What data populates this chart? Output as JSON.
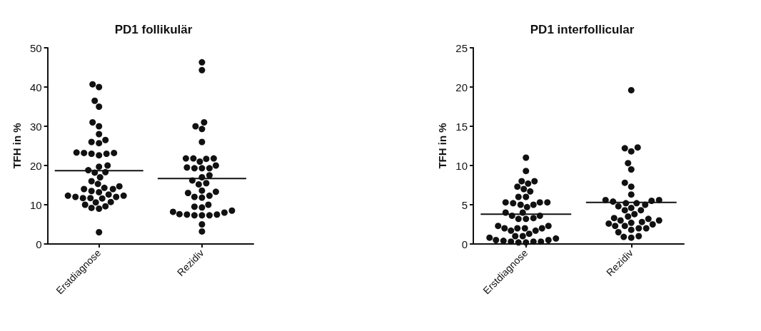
{
  "chart_data": [
    {
      "type": "scatter",
      "title": "PD1 follikulär",
      "ylabel": "TFH in %",
      "categories": [
        "Erstdiagnose",
        "Rezidiv"
      ],
      "ylim": [
        0,
        50
      ],
      "yticks": [
        0,
        10,
        20,
        30,
        40,
        50
      ],
      "grid": false,
      "marker": "circle",
      "series": [
        {
          "color": "#111111",
          "x": [
            "Erstdiagnose",
            "Erstdiagnose",
            "Erstdiagnose",
            "Erstdiagnose",
            "Erstdiagnose",
            "Erstdiagnose",
            "Erstdiagnose",
            "Erstdiagnose",
            "Erstdiagnose",
            "Erstdiagnose",
            "Erstdiagnose",
            "Erstdiagnose",
            "Erstdiagnose",
            "Erstdiagnose",
            "Erstdiagnose",
            "Erstdiagnose",
            "Erstdiagnose",
            "Erstdiagnose",
            "Erstdiagnose",
            "Erstdiagnose",
            "Erstdiagnose",
            "Erstdiagnose",
            "Erstdiagnose",
            "Erstdiagnose",
            "Erstdiagnose",
            "Erstdiagnose",
            "Erstdiagnose",
            "Erstdiagnose",
            "Erstdiagnose",
            "Erstdiagnose",
            "Erstdiagnose",
            "Erstdiagnose",
            "Erstdiagnose",
            "Erstdiagnose",
            "Erstdiagnose",
            "Erstdiagnose",
            "Erstdiagnose",
            "Erstdiagnose",
            "Erstdiagnose",
            "Erstdiagnose",
            "Erstdiagnose",
            "Erstdiagnose",
            "Erstdiagnose",
            "Erstdiagnose",
            "Erstdiagnose"
          ],
          "values": [
            40.7,
            40,
            36.5,
            35,
            31,
            30,
            28,
            26.5,
            26,
            25.7,
            23.3,
            23.2,
            23.2,
            23,
            23,
            22.6,
            20,
            19.7,
            18.8,
            18.3,
            18.2,
            17,
            16,
            15.3,
            14.7,
            14.3,
            14,
            14,
            13.5,
            13.2,
            12.6,
            12.3,
            12.3,
            12,
            12,
            11.7,
            11.7,
            11.6,
            10.7,
            10.6,
            10,
            9.6,
            9.2,
            9,
            3
          ]
        },
        {
          "color": "#111111",
          "x": [
            "Rezidiv",
            "Rezidiv",
            "Rezidiv",
            "Rezidiv",
            "Rezidiv",
            "Rezidiv",
            "Rezidiv",
            "Rezidiv",
            "Rezidiv",
            "Rezidiv",
            "Rezidiv",
            "Rezidiv",
            "Rezidiv",
            "Rezidiv",
            "Rezidiv",
            "Rezidiv",
            "Rezidiv",
            "Rezidiv",
            "Rezidiv",
            "Rezidiv",
            "Rezidiv",
            "Rezidiv",
            "Rezidiv",
            "Rezidiv",
            "Rezidiv",
            "Rezidiv",
            "Rezidiv",
            "Rezidiv",
            "Rezidiv",
            "Rezidiv",
            "Rezidiv",
            "Rezidiv",
            "Rezidiv",
            "Rezidiv",
            "Rezidiv",
            "Rezidiv",
            "Rezidiv",
            "Rezidiv",
            "Rezidiv",
            "Rezidiv",
            "Rezidiv"
          ],
          "values": [
            46.3,
            44.3,
            31,
            30,
            29.3,
            26,
            21.8,
            21.8,
            21.8,
            21.7,
            21,
            20,
            19.3,
            19.3,
            19.3,
            19.5,
            17,
            17.5,
            16.2,
            15.5,
            15.2,
            13.6,
            13.3,
            13,
            12.3,
            12,
            11.8,
            10,
            9.5,
            9.3,
            8.5,
            8.2,
            8,
            7.6,
            7.5,
            7.3,
            7.3,
            7.3,
            7.5,
            5,
            3.2
          ]
        },
        {
          "type": "bar",
          "color": "#111111",
          "base": [
            18.7,
            16.7
          ],
          "values": [
            0,
            0
          ]
        }
      ]
    },
    {
      "type": "scatter",
      "title": "PD1 interfollicular",
      "ylabel": "TFH in %",
      "categories": [
        "Erstdiagnose",
        "Rezidiv"
      ],
      "ylim": [
        0,
        25
      ],
      "yticks": [
        0,
        5,
        10,
        15,
        20,
        25
      ],
      "grid": false,
      "marker": "circle",
      "series": [
        {
          "color": "#111111",
          "x": [
            "Erstdiagnose",
            "Erstdiagnose",
            "Erstdiagnose",
            "Erstdiagnose",
            "Erstdiagnose",
            "Erstdiagnose",
            "Erstdiagnose",
            "Erstdiagnose",
            "Erstdiagnose",
            "Erstdiagnose",
            "Erstdiagnose",
            "Erstdiagnose",
            "Erstdiagnose",
            "Erstdiagnose",
            "Erstdiagnose",
            "Erstdiagnose",
            "Erstdiagnose",
            "Erstdiagnose",
            "Erstdiagnose",
            "Erstdiagnose",
            "Erstdiagnose",
            "Erstdiagnose",
            "Erstdiagnose",
            "Erstdiagnose",
            "Erstdiagnose",
            "Erstdiagnose",
            "Erstdiagnose",
            "Erstdiagnose",
            "Erstdiagnose",
            "Erstdiagnose",
            "Erstdiagnose",
            "Erstdiagnose",
            "Erstdiagnose",
            "Erstdiagnose",
            "Erstdiagnose",
            "Erstdiagnose",
            "Erstdiagnose",
            "Erstdiagnose",
            "Erstdiagnose",
            "Erstdiagnose",
            "Erstdiagnose",
            "Erstdiagnose",
            "Erstdiagnose",
            "Erstdiagnose",
            "Erstdiagnose"
          ],
          "values": [
            11,
            9.3,
            8,
            8,
            7.7,
            7.3,
            7,
            6.7,
            6,
            6,
            5.3,
            5.3,
            5.3,
            5.2,
            5,
            5,
            4.7,
            4,
            4,
            3.6,
            3.6,
            3.3,
            3.2,
            3.2,
            2.3,
            2.3,
            2,
            2,
            2,
            2,
            1.7,
            1.7,
            1.3,
            1,
            1,
            0.8,
            0.7,
            0.5,
            0.5,
            0.4,
            0.3,
            0.3,
            0.2,
            0.2,
            0.3
          ]
        },
        {
          "color": "#111111",
          "x": [
            "Rezidiv",
            "Rezidiv",
            "Rezidiv",
            "Rezidiv",
            "Rezidiv",
            "Rezidiv",
            "Rezidiv",
            "Rezidiv",
            "Rezidiv",
            "Rezidiv",
            "Rezidiv",
            "Rezidiv",
            "Rezidiv",
            "Rezidiv",
            "Rezidiv",
            "Rezidiv",
            "Rezidiv",
            "Rezidiv",
            "Rezidiv",
            "Rezidiv",
            "Rezidiv",
            "Rezidiv",
            "Rezidiv",
            "Rezidiv",
            "Rezidiv",
            "Rezidiv",
            "Rezidiv",
            "Rezidiv",
            "Rezidiv",
            "Rezidiv",
            "Rezidiv",
            "Rezidiv",
            "Rezidiv",
            "Rezidiv",
            "Rezidiv",
            "Rezidiv",
            "Rezidiv",
            "Rezidiv",
            "Rezidiv"
          ],
          "values": [
            19.6,
            12.2,
            11.8,
            12.3,
            10.3,
            9.5,
            7.8,
            7.3,
            6.3,
            5.6,
            5.6,
            5.5,
            5.4,
            5.2,
            5.2,
            5,
            4.8,
            4.6,
            4.3,
            4.3,
            3.8,
            3.5,
            3.3,
            3.2,
            3,
            3,
            2.8,
            2.7,
            2.6,
            2.5,
            2.3,
            2.3,
            2,
            2,
            1.8,
            1.5,
            1,
            0.9,
            0.8
          ]
        },
        {
          "type": "bar",
          "color": "#111111",
          "base": [
            3.8,
            5.3
          ],
          "values": [
            0,
            0
          ]
        }
      ]
    }
  ]
}
